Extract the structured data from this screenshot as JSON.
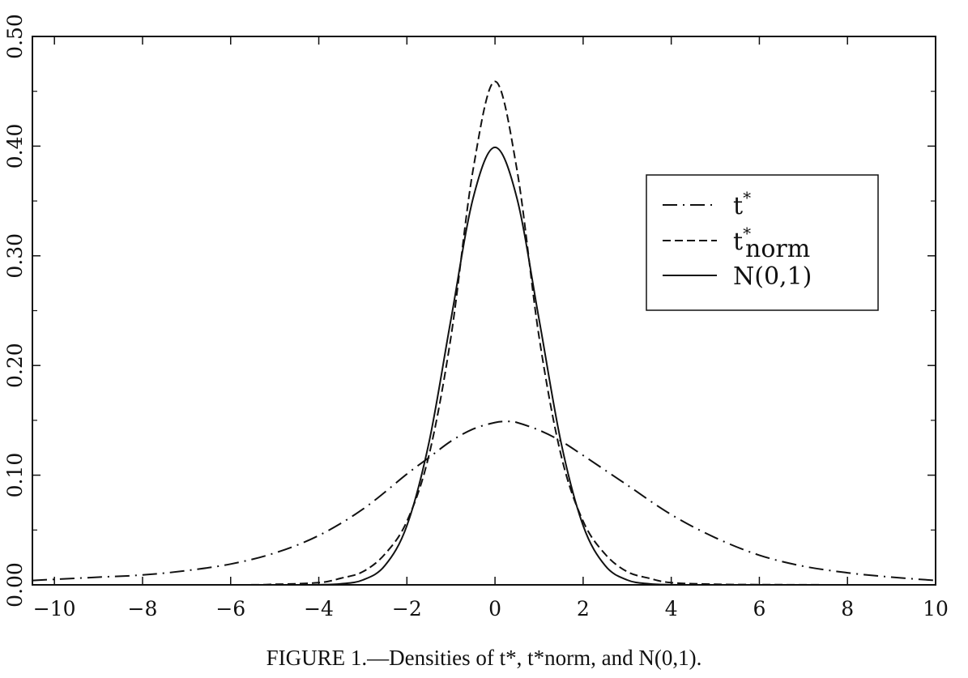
{
  "caption": "FIGURE 1.—Densities of t*, t*norm, and N(0,1).",
  "chart_data": {
    "type": "line",
    "title": "",
    "xlabel": "",
    "ylabel": "",
    "xlim": [
      -10.5,
      10
    ],
    "ylim": [
      0,
      0.5
    ],
    "xticks": [
      -10,
      -8,
      -6,
      -4,
      -2,
      0,
      2,
      4,
      6,
      8,
      10
    ],
    "xtick_labels": [
      "−10",
      "−8",
      "−6",
      "−4",
      "−2",
      "0",
      "2",
      "4",
      "6",
      "8",
      "10"
    ],
    "yticks": [
      0,
      0.1,
      0.2,
      0.3,
      0.4,
      0.5
    ],
    "ytick_labels": [
      "0.00",
      "0.10",
      "0.20",
      "0.30",
      "0.40",
      "0.50"
    ],
    "grid": false,
    "legend_position": "right",
    "legend": [
      {
        "base": "t",
        "sup": "*",
        "sub": "",
        "style": "dash-dot"
      },
      {
        "base": "t",
        "sup": "*",
        "sub": "norm",
        "style": "dashed"
      },
      {
        "base": "N(0,1)",
        "sup": "",
        "sub": "",
        "style": "solid"
      }
    ],
    "series": [
      {
        "style": "dash-dot",
        "x": [
          -10.5,
          -10,
          -9,
          -8,
          -7,
          -6,
          -5,
          -4,
          -3,
          -2,
          -1.5,
          -1,
          -0.5,
          0,
          0.3,
          0.5,
          1,
          1.5,
          2,
          3,
          4,
          5,
          6,
          7,
          8,
          9,
          10
        ],
        "y": [
          0.004,
          0.005,
          0.007,
          0.009,
          0.013,
          0.019,
          0.029,
          0.045,
          0.069,
          0.101,
          0.116,
          0.131,
          0.142,
          0.148,
          0.149,
          0.148,
          0.141,
          0.131,
          0.118,
          0.091,
          0.064,
          0.043,
          0.027,
          0.017,
          0.011,
          0.007,
          0.004
        ]
      },
      {
        "style": "dashed",
        "x": [
          -10.5,
          -6,
          -5,
          -4,
          -3.5,
          -3,
          -2.5,
          -2,
          -1.5,
          -1,
          -0.5,
          0,
          0.5,
          1,
          1.5,
          2,
          2.5,
          3,
          3.5,
          4,
          5,
          6,
          7,
          8,
          9,
          10
        ],
        "y": [
          0,
          0,
          0.0005,
          0.002,
          0.006,
          0.012,
          0.028,
          0.058,
          0.118,
          0.226,
          0.378,
          0.459,
          0.378,
          0.226,
          0.118,
          0.058,
          0.028,
          0.012,
          0.006,
          0.002,
          0.0005,
          0.0002,
          0.0001,
          0,
          0,
          0
        ]
      },
      {
        "style": "solid",
        "x": [
          -10.5,
          -5,
          -4.5,
          -4,
          -3.5,
          -3,
          -2.5,
          -2,
          -1.5,
          -1,
          -0.5,
          0,
          0.5,
          1,
          1.5,
          2,
          2.5,
          3,
          3.5,
          4,
          4.5,
          5,
          10
        ],
        "y": [
          0,
          0,
          0,
          0.0001,
          0.0009,
          0.0044,
          0.0175,
          0.054,
          0.1295,
          0.242,
          0.3521,
          0.3989,
          0.3521,
          0.242,
          0.1295,
          0.054,
          0.0175,
          0.0044,
          0.0009,
          0.0001,
          0,
          0,
          0
        ]
      }
    ]
  }
}
